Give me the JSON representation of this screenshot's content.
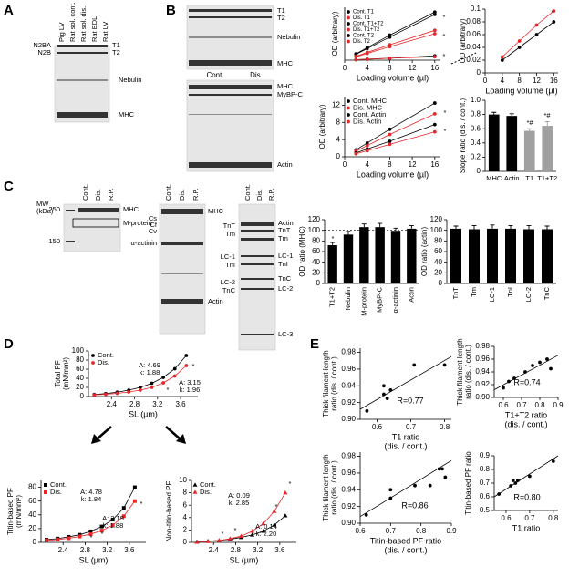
{
  "panels": [
    "A",
    "B",
    "C",
    "D",
    "E"
  ],
  "gels": [
    {
      "lanes": [
        "Pig LV",
        "Rat sol. cont.",
        "Rat sol. dis.",
        "Rat EDL",
        "Rat LV"
      ],
      "labels": [
        "N2BA",
        "N2B",
        "T1",
        "T2",
        "Nebulin",
        "MHC"
      ]
    },
    {
      "labels": [
        "T1",
        "T2",
        "Nebulin",
        "MHC"
      ]
    },
    {
      "lanes": [
        "Cont.",
        "Dis."
      ],
      "labels": [
        "MHC",
        "MyBP-C",
        "Actin"
      ]
    },
    {
      "lanes": [
        "Cont.",
        "Dis.",
        "R.P."
      ],
      "labels": [
        "MW",
        "(kDa)",
        "250",
        "150",
        "MHC",
        "M-protein"
      ]
    },
    {
      "lanes": [
        "Cont.",
        "Dis.",
        "R.P."
      ],
      "labels": [
        "Cs",
        "Cf",
        "Cv",
        "α-actinin",
        "MHC",
        "Actin"
      ]
    },
    {
      "lanes": [
        "Cont.",
        "Dis.",
        "R.P."
      ],
      "labels": [
        "TnT",
        "Tm",
        "LC-1",
        "TnI",
        "LC-2",
        "TnC",
        "Actin",
        "TnT",
        "Tm",
        "LC-1",
        "TnI",
        "TnC",
        "LC-2",
        "LC-3"
      ]
    }
  ],
  "chart_data": [
    {
      "type": "line",
      "ylabel": "OD (arbitrary)",
      "xlabel": "Loading volume (µl)",
      "x": [
        2,
        4,
        8,
        16
      ],
      "xlim": [
        0,
        17
      ],
      "xticks": [
        0,
        4,
        8,
        12,
        16
      ],
      "ylim": [
        0,
        1.1
      ],
      "legend": true,
      "series": [
        {
          "name": "Cont. T1",
          "color": "#000000",
          "marker": "circle",
          "values": [
            0.12,
            0.24,
            0.48,
            0.95
          ]
        },
        {
          "name": "Dis. T1",
          "color": "#e8262a",
          "marker": "circle",
          "values": [
            0.07,
            0.14,
            0.28,
            0.55
          ]
        },
        {
          "name": "Cont. T1+T2",
          "color": "#000000",
          "marker": "circle",
          "values": [
            0.13,
            0.26,
            0.52,
            1.0
          ]
        },
        {
          "name": "Dis. T1+T2",
          "color": "#e8262a",
          "marker": "circle",
          "values": [
            0.08,
            0.16,
            0.32,
            0.62
          ]
        },
        {
          "name": "Cont. T2",
          "color": "#000000",
          "marker": "circle",
          "values": [
            0.01,
            0.02,
            0.04,
            0.09
          ]
        },
        {
          "name": "Dis. T2",
          "color": "#e8262a",
          "marker": "circle",
          "values": [
            0.01,
            0.02,
            0.04,
            0.07
          ]
        }
      ],
      "annotations": [
        "*",
        "*",
        "*"
      ]
    },
    {
      "type": "line",
      "ylabel": "OD (arbitrary)",
      "xlabel": "Loading volume (µl)",
      "x": [
        4,
        8,
        12,
        16
      ],
      "xlim": [
        0,
        17
      ],
      "xticks": [
        0,
        4,
        8,
        12,
        16
      ],
      "ylim": [
        0,
        0.1
      ],
      "yticks": [
        0,
        0.02,
        0.04,
        0.06,
        0.08,
        0.1
      ],
      "series": [
        {
          "color": "#000000",
          "marker": "circle",
          "values": [
            0.02,
            0.04,
            0.06,
            0.08
          ]
        },
        {
          "color": "#e8262a",
          "marker": "circle",
          "values": [
            0.025,
            0.05,
            0.075,
            0.097
          ]
        }
      ],
      "annotations": [
        "*"
      ]
    },
    {
      "type": "line",
      "ylabel": "OD (arbitrary)",
      "xlabel": "Loading volume (µl)",
      "x": [
        2,
        4,
        8,
        16
      ],
      "xlim": [
        0,
        17
      ],
      "xticks": [
        0,
        4,
        8,
        12,
        16
      ],
      "ylim": [
        0,
        14
      ],
      "yticks": [
        0,
        4,
        8,
        12
      ],
      "legend": true,
      "series": [
        {
          "name": "Cont. MHC",
          "color": "#000000",
          "marker": "circle",
          "values": [
            1.6,
            3.2,
            6.4,
            12.5
          ]
        },
        {
          "name": "Dis. MHC",
          "color": "#e8262a",
          "marker": "circle",
          "values": [
            1.3,
            2.6,
            5.2,
            10
          ]
        },
        {
          "name": "Cont. Actin",
          "color": "#000000",
          "marker": "circle",
          "values": [
            0.9,
            1.8,
            3.6,
            7.5
          ]
        },
        {
          "name": "Dis. Actin",
          "color": "#e8262a",
          "marker": "circle",
          "values": [
            0.7,
            1.4,
            2.9,
            5.8
          ]
        }
      ],
      "annotations": [
        "*",
        "*"
      ]
    },
    {
      "type": "bar",
      "ylabel": "Slope ratio (dis. / cont.)",
      "categories": [
        "MHC",
        "Actin",
        "T1",
        "T1+T2"
      ],
      "values": [
        0.8,
        0.78,
        0.57,
        0.64
      ],
      "errors": [
        0.03,
        0.03,
        0.03,
        0.06
      ],
      "colors": [
        "#000000",
        "#000000",
        "#a0a0a0",
        "#a0a0a0"
      ],
      "ylim": [
        0,
        1
      ],
      "yticks": [
        0,
        0.2,
        0.4,
        0.6,
        0.8,
        {
          "value": 1,
          "label": "1.0"
        }
      ],
      "annotations": [
        "*#",
        "*#"
      ]
    },
    {
      "type": "bar",
      "ylabel": "OD ratio (MHC)",
      "categories": [
        "T1+T2",
        "Nebulin",
        "M-protein",
        "MyBP-C",
        "α-actinin",
        "Actin"
      ],
      "values": [
        72,
        92,
        106,
        106,
        99,
        103
      ],
      "errors": [
        5,
        6,
        6,
        7,
        5,
        6
      ],
      "colors": [
        "#000000",
        "#000000",
        "#000000",
        "#000000",
        "#000000",
        "#000000"
      ],
      "ylim": [
        0,
        120
      ],
      "yticks": [
        0,
        20,
        40,
        60,
        80,
        100,
        120
      ],
      "reference_line": 100,
      "annotations": [
        "*"
      ]
    },
    {
      "type": "bar",
      "ylabel": "OD ratio (actin)",
      "categories": [
        "TnT",
        "Tm",
        "LC-1",
        "TnI",
        "LC-2",
        "TnC"
      ],
      "values": [
        103,
        102,
        103,
        103,
        102,
        102
      ],
      "errors": [
        5,
        7,
        7,
        6,
        7,
        6
      ],
      "colors": [
        "#000000",
        "#000000",
        "#000000",
        "#000000",
        "#000000",
        "#000000"
      ],
      "ylim": [
        0,
        120
      ],
      "yticks": [
        0,
        20,
        40,
        60,
        80,
        100,
        120
      ]
    },
    {
      "type": "line",
      "ylabel": [
        "Total PF",
        "(mN/mm²)"
      ],
      "xlabel": "SL (µm)",
      "x": [
        2.1,
        2.3,
        2.5,
        2.7,
        2.9,
        3.1,
        3.3,
        3.5,
        3.7
      ],
      "xlim": [
        2,
        3.9
      ],
      "xticks": [
        2.4,
        2.8,
        3.2,
        3.6
      ],
      "ylim": [
        0,
        100
      ],
      "yticks": [
        0,
        20,
        40,
        60,
        80,
        100
      ],
      "legend": true,
      "series": [
        {
          "name": "Cont.",
          "color": "#000000",
          "marker": "circle",
          "values": [
            4.5,
            6.5,
            9.5,
            14,
            20,
            29,
            42,
            61,
            90
          ]
        },
        {
          "name": "Dis.",
          "color": "#e8262a",
          "marker": "circle",
          "values": [
            3.5,
            5,
            7,
            10,
            14,
            20,
            30,
            45,
            68
          ]
        }
      ],
      "annotations": [
        "A: 4.69",
        "k: 1.88",
        "A: 3.15",
        "k: 1.96",
        "*",
        "*"
      ]
    },
    {
      "type": "line",
      "ylabel": [
        "Titin-based PF",
        "(mN/mm²)"
      ],
      "xlabel": "SL (µm)",
      "x": [
        2.1,
        2.3,
        2.5,
        2.7,
        2.9,
        3.1,
        3.3,
        3.5,
        3.7
      ],
      "xlim": [
        2,
        3.9
      ],
      "xticks": [
        2.4,
        2.8,
        3.2,
        3.6
      ],
      "ylim": [
        0,
        90
      ],
      "yticks": [
        0,
        20,
        40,
        60,
        80
      ],
      "legend": true,
      "series": [
        {
          "name": "Cont.",
          "color": "#000000",
          "marker": "square",
          "values": [
            4,
            5.5,
            8,
            11,
            16,
            23,
            33,
            50,
            80
          ]
        },
        {
          "name": "Dis.",
          "color": "#e8262a",
          "marker": "square",
          "values": [
            3,
            4,
            6,
            8.5,
            12,
            17,
            25,
            38,
            60
          ]
        }
      ],
      "annotations": [
        "A: 4.78",
        "k: 1.84",
        "A: 3.19",
        "k: 1.88",
        "*",
        "*",
        "*"
      ]
    },
    {
      "type": "line",
      "ylabel": "Non-titin-based PF",
      "xlabel": "SL (µm)",
      "x": [
        2.1,
        2.3,
        2.5,
        2.7,
        2.9,
        3.1,
        3.3,
        3.5,
        3.7
      ],
      "xlim": [
        2,
        3.9
      ],
      "xticks": [
        2.4,
        2.8,
        3.2,
        3.6
      ],
      "ylim": [
        0,
        10
      ],
      "yticks": [
        0,
        2,
        4,
        6,
        8,
        10
      ],
      "legend": true,
      "series": [
        {
          "name": "Cont.",
          "color": "#000000",
          "marker": "triangle",
          "values": [
            0.1,
            0.2,
            0.3,
            0.5,
            0.8,
            1.2,
            1.8,
            2.8,
            4.3
          ]
        },
        {
          "name": "Dis.",
          "color": "#e8262a",
          "marker": "triangle",
          "values": [
            0.05,
            0.15,
            0.3,
            0.6,
            1,
            1.8,
            3,
            5,
            8
          ]
        }
      ],
      "annotations": [
        "A: 0.09",
        "k: 2.85",
        "A: 0.14",
        "k: 2.20",
        "*",
        "*",
        "*",
        "*"
      ]
    },
    {
      "type": "scatter",
      "ylabel": [
        "Thick filament length",
        "ratio (dis. / cont.)"
      ],
      "xlabel": [
        "T1 ratio",
        "(dis. / cont.)"
      ],
      "x": [
        0.57,
        0.62,
        0.62,
        0.63,
        0.64,
        0.71,
        0.8
      ],
      "values": [
        0.91,
        0.93,
        0.94,
        0.925,
        0.935,
        0.965,
        0.965
      ],
      "xlim": [
        0.55,
        0.82
      ],
      "xticks": [
        0.6,
        0.7,
        0.8
      ],
      "ylim": [
        0.9,
        0.985
      ],
      "yticks": [
        {
          "value": 0.9,
          "label": "0.90"
        },
        0.92,
        0.94,
        0.96,
        0.98
      ],
      "fit": {
        "x": [
          0.55,
          0.82
        ],
        "y": [
          0.912,
          0.975
        ]
      },
      "annotations": [
        "R=0.77"
      ]
    },
    {
      "type": "scatter",
      "ylabel": [
        "Thick filament length",
        "ratio (dis. / cont.)"
      ],
      "xlabel": [
        "T1+T2 ratio",
        "(dis. / cont.)"
      ],
      "x": [
        0.6,
        0.63,
        0.66,
        0.72,
        0.76,
        0.8,
        0.84,
        0.86
      ],
      "values": [
        0.915,
        0.925,
        0.93,
        0.94,
        0.95,
        0.955,
        0.96,
        0.945
      ],
      "xlim": [
        0.55,
        0.9
      ],
      "xticks": [
        0.6,
        0.7,
        0.8,
        0.9
      ],
      "ylim": [
        0.9,
        0.98
      ],
      "yticks": [
        {
          "value": 0.9,
          "label": "0.90"
        },
        0.92,
        0.94,
        0.96,
        0.98
      ],
      "fit": {
        "x": [
          0.55,
          0.9
        ],
        "y": [
          0.912,
          0.966
        ]
      },
      "annotations": [
        "R=0.74"
      ]
    },
    {
      "type": "scatter",
      "ylabel": [
        "Thick filament length",
        "ratio (dis. / cont.)"
      ],
      "xlabel": [
        "Titin-based PF ratio",
        "(dis. / cont.)"
      ],
      "x": [
        0.62,
        0.7,
        0.7,
        0.78,
        0.83,
        0.86,
        0.87,
        0.88
      ],
      "values": [
        0.91,
        0.93,
        0.94,
        0.945,
        0.945,
        0.965,
        0.965,
        0.955
      ],
      "xlim": [
        0.6,
        0.9
      ],
      "xticks": [
        0.6,
        0.7,
        0.8,
        0.9
      ],
      "ylim": [
        0.9,
        0.985
      ],
      "yticks": [
        {
          "value": 0.9,
          "label": "0.90"
        },
        0.92,
        0.94,
        0.96,
        0.98
      ],
      "fit": {
        "x": [
          0.6,
          0.9
        ],
        "y": [
          0.908,
          0.975
        ]
      },
      "annotations": [
        "R=0.86"
      ]
    },
    {
      "type": "scatter",
      "ylabel": "Titin-based PF ratio",
      "xlabel": "T1 ratio",
      "x": [
        0.57,
        0.62,
        0.63,
        0.64,
        0.65,
        0.7,
        0.8
      ],
      "values": [
        0.62,
        0.68,
        0.72,
        0.7,
        0.72,
        0.75,
        0.86
      ],
      "xlim": [
        0.55,
        0.82
      ],
      "xticks": [
        0.6,
        0.7,
        0.8
      ],
      "ylim": [
        0.5,
        0.9
      ],
      "yticks": [
        0.5,
        0.6,
        0.7,
        0.8,
        0.9
      ],
      "fit": {
        "x": [
          0.55,
          0.82
        ],
        "y": [
          0.6,
          0.9
        ]
      },
      "annotations": [
        "R=0.80"
      ]
    }
  ]
}
